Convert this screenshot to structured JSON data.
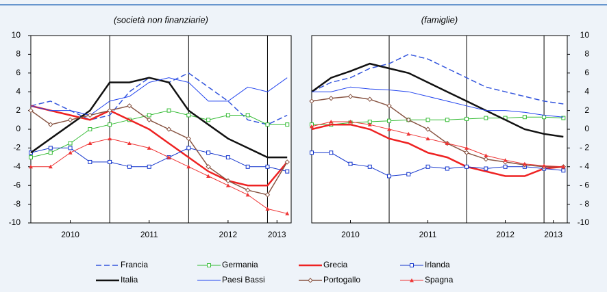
{
  "chart_data": [
    {
      "type": "line",
      "title": "(società non finanziarie)",
      "x": [
        2010,
        2010.25,
        2010.5,
        2010.75,
        2011,
        2011.25,
        2011.5,
        2011.75,
        2012,
        2012.25,
        2012.5,
        2012.75,
        2013,
        2013.25
      ],
      "xlim": [
        2010,
        2013.3
      ],
      "xticks": [
        {
          "value": 2010.5,
          "label": "2010"
        },
        {
          "value": 2011.5,
          "label": "2011"
        },
        {
          "value": 2012.5,
          "label": "2012"
        },
        {
          "value": 2013.12,
          "label": "2013"
        }
      ],
      "xgrid": [
        2011,
        2012,
        2013
      ],
      "ylim": [
        -10,
        10
      ],
      "yticks": [
        -10,
        -8,
        -6,
        -4,
        -2,
        0,
        2,
        4,
        6,
        8,
        10
      ],
      "y_axis_side": "left",
      "series": [
        {
          "name": "Francia",
          "color": "#3355dd",
          "dash": true,
          "width": 1.5,
          "marker": "none",
          "values": [
            2.5,
            3,
            2,
            1,
            1.5,
            4,
            5.5,
            5,
            6,
            4.5,
            3,
            1,
            0.5,
            1.5
          ]
        },
        {
          "name": "Germania",
          "color": "#33bb33",
          "dash": false,
          "width": 1,
          "marker": "square",
          "values": [
            -3,
            -2.5,
            -1.5,
            0,
            0.5,
            1,
            1.5,
            2,
            1.5,
            1,
            1.5,
            1.5,
            0.5,
            0.5
          ]
        },
        {
          "name": "Grecia",
          "color": "#ee2222",
          "dash": false,
          "width": 2.5,
          "marker": "none",
          "values": [
            2.5,
            2,
            1.5,
            1,
            2,
            1,
            0,
            -1.5,
            -3,
            -4.5,
            -5.5,
            -6,
            -6,
            -3.5
          ]
        },
        {
          "name": "Irlanda",
          "color": "#1133cc",
          "dash": false,
          "width": 1,
          "marker": "square",
          "values": [
            -2.5,
            -2,
            -2,
            -3.5,
            -3.5,
            -4,
            -4,
            -3,
            -2,
            -2.5,
            -3,
            -4,
            -4,
            -4.5
          ]
        },
        {
          "name": "Italia",
          "color": "#111111",
          "dash": false,
          "width": 2.5,
          "marker": "none",
          "values": [
            -2.5,
            -1,
            0.5,
            2,
            5,
            5,
            5.5,
            5,
            2,
            0.5,
            -1,
            -2,
            -3,
            -3
          ]
        },
        {
          "name": "Paesi Bassi",
          "color": "#2244ee",
          "dash": false,
          "width": 1,
          "marker": "none",
          "values": [
            2.5,
            2,
            2,
            1.5,
            3,
            3.5,
            5,
            5.5,
            5,
            3,
            3,
            4.5,
            4,
            5.5
          ]
        },
        {
          "name": "Portogallo",
          "color": "#885544",
          "dash": false,
          "width": 1.5,
          "marker": "diamond",
          "values": [
            2,
            0.5,
            1,
            1.5,
            2,
            2.5,
            1,
            0,
            -1,
            -4,
            -5.5,
            -6.5,
            -7,
            -3.5
          ]
        },
        {
          "name": "Spagna",
          "color": "#ee3333",
          "dash": false,
          "width": 1,
          "marker": "triangle",
          "values": [
            -4,
            -4,
            -2.5,
            -1.5,
            -1,
            -1.5,
            -2,
            -3,
            -4,
            -5,
            -6,
            -7,
            -8.5,
            -9
          ]
        }
      ]
    },
    {
      "type": "line",
      "title": "(famiglie)",
      "x": [
        2010,
        2010.25,
        2010.5,
        2010.75,
        2011,
        2011.25,
        2011.5,
        2011.75,
        2012,
        2012.25,
        2012.5,
        2012.75,
        2013,
        2013.25
      ],
      "xlim": [
        2010,
        2013.3
      ],
      "xticks": [
        {
          "value": 2010.5,
          "label": "2010"
        },
        {
          "value": 2011.5,
          "label": "2011"
        },
        {
          "value": 2012.5,
          "label": "2012"
        },
        {
          "value": 2013.12,
          "label": "2013"
        }
      ],
      "xgrid": [
        2011,
        2012,
        2013
      ],
      "ylim": [
        -10,
        10
      ],
      "yticks": [
        -10,
        {
          "value": -8,
          "label": "- 8"
        },
        {
          "value": -6,
          "label": "- 6"
        },
        {
          "value": -4,
          "label": "- 4"
        },
        {
          "value": -2,
          "label": "- 2"
        },
        0,
        2,
        4,
        6,
        8,
        10
      ],
      "y_axis_side": "right",
      "series": [
        {
          "name": "Francia",
          "color": "#3355dd",
          "dash": true,
          "width": 1.5,
          "marker": "none",
          "values": [
            4,
            5,
            5.5,
            6.5,
            7,
            8,
            7.5,
            6.5,
            5.5,
            4.5,
            4,
            3.5,
            3,
            2.7
          ]
        },
        {
          "name": "Germania",
          "color": "#33bb33",
          "dash": false,
          "width": 1,
          "marker": "square",
          "values": [
            0.5,
            0.5,
            0.7,
            0.8,
            0.9,
            1,
            1,
            1,
            1.1,
            1.2,
            1.2,
            1.3,
            1.3,
            1.2
          ]
        },
        {
          "name": "Grecia",
          "color": "#ee2222",
          "dash": false,
          "width": 2.5,
          "marker": "none",
          "values": [
            0,
            0.5,
            0.5,
            0,
            -1,
            -1.5,
            -2.5,
            -3,
            -4,
            -4.5,
            -5,
            -5,
            -4.2,
            -4
          ]
        },
        {
          "name": "Irlanda",
          "color": "#1133cc",
          "dash": false,
          "width": 1,
          "marker": "square",
          "values": [
            -2.5,
            -2.5,
            -3.7,
            -4,
            -5,
            -4.8,
            -4,
            -4.2,
            -4,
            -4.2,
            -4,
            -4,
            -4.2,
            -4.4
          ]
        },
        {
          "name": "Italia",
          "color": "#111111",
          "dash": false,
          "width": 2.5,
          "marker": "none",
          "values": [
            4,
            5.5,
            6.2,
            7,
            6.5,
            6,
            5,
            4,
            3,
            2,
            1,
            0,
            -0.5,
            -0.8
          ]
        },
        {
          "name": "Paesi Bassi",
          "color": "#2244ee",
          "dash": false,
          "width": 1,
          "marker": "none",
          "values": [
            4,
            4,
            4.5,
            4.3,
            4.2,
            4,
            3.5,
            3,
            2.5,
            2,
            2,
            1.8,
            1.5,
            1.3
          ]
        },
        {
          "name": "Portogallo",
          "color": "#885544",
          "dash": false,
          "width": 1.5,
          "marker": "diamond",
          "values": [
            3,
            3.3,
            3.5,
            3.2,
            2.5,
            1,
            0,
            -1.5,
            -2.5,
            -3.2,
            -3.5,
            -3.8,
            -4,
            -4
          ]
        },
        {
          "name": "Spagna",
          "color": "#ee3333",
          "dash": false,
          "width": 1,
          "marker": "triangle",
          "values": [
            0.3,
            0.8,
            0.8,
            0.5,
            0,
            -0.5,
            -1,
            -1.5,
            -2,
            -2.8,
            -3.3,
            -3.7,
            -3.9,
            -4
          ]
        }
      ]
    }
  ]
}
